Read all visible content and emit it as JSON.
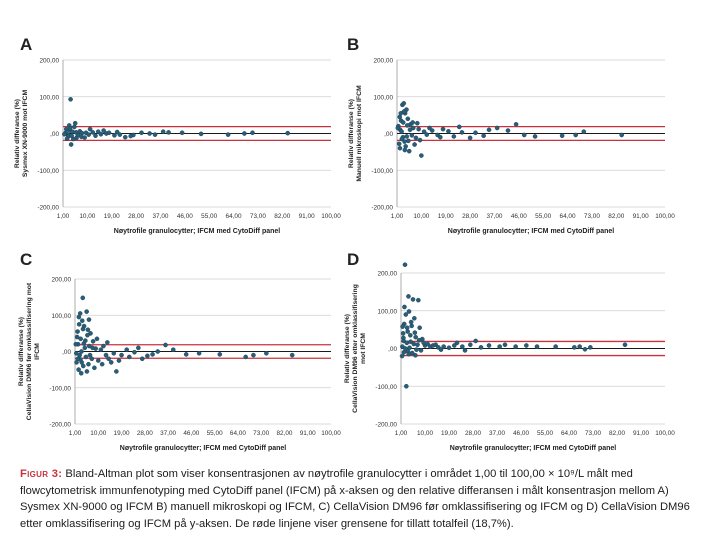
{
  "figure": {
    "caption_label": "Figur 3:",
    "caption_text": "Bland-Altman plot som viser konsentrasjonen av nøytrofile granulocytter i området 1,00 til 100,00 × 10⁹/L målt med flowcytometrisk immunfenotyping med CytoDiff panel (IFCM) på x-aksen og den relative differansen i målt konsentrasjon mellom A) Sysmex XN-9000 og IFCM B) manuell mikroskopi og IFCM, C) CellaVision DM96 før omklassifisering og IFCM og D) CellaVision DM96 etter omklassifisering og IFCM på y-aksen. De røde linjene viser grensene for tillatt totalfeil (18,7%)."
  },
  "colors": {
    "points": "#2a5d77",
    "limits": "#c8323c",
    "mean": "#1a1a1a",
    "grid": "#cfcfcf"
  },
  "chart_data": [
    {
      "panel": "A",
      "type": "scatter",
      "ylabel": [
        "Relativ differanse (%)",
        "Sysmex XN-9000 mot IFCM"
      ],
      "xlabel": "Nøytrofile granulocytter; IFCM  med CytoDiff panel",
      "xlim": [
        1,
        100
      ],
      "ylim": [
        -200,
        200
      ],
      "x_ticks": [
        "1,00",
        "10,00",
        "19,00",
        "28,00",
        "37,00",
        "46,00",
        "55,00",
        "64,00",
        "73,00",
        "82,00",
        "91,00",
        "100,00"
      ],
      "y_ticks": [
        "200,00",
        "100,00",
        ",00",
        "-100,00",
        "-200,00"
      ],
      "mean_line": 0,
      "limit_lines": [
        18.7,
        -18.7
      ],
      "points": [
        [
          3.8,
          93
        ],
        [
          2.2,
          12
        ],
        [
          3.5,
          8
        ],
        [
          4.5,
          5
        ],
        [
          2.8,
          -3
        ],
        [
          5.2,
          18
        ],
        [
          3.0,
          -8
        ],
        [
          4.0,
          -30
        ],
        [
          5.8,
          3
        ],
        [
          6.5,
          -4
        ],
        [
          7.2,
          6
        ],
        [
          2.0,
          2
        ],
        [
          1.5,
          -2
        ],
        [
          8.0,
          1
        ],
        [
          9.5,
          2
        ],
        [
          10.5,
          -3
        ],
        [
          12,
          3
        ],
        [
          14,
          5
        ],
        [
          15,
          -2
        ],
        [
          17,
          0
        ],
        [
          18,
          2
        ],
        [
          20,
          -5
        ],
        [
          22,
          -3
        ],
        [
          24,
          -10
        ],
        [
          27,
          -4
        ],
        [
          30,
          2
        ],
        [
          33,
          0
        ],
        [
          35,
          -3
        ],
        [
          38,
          5
        ],
        [
          40,
          3
        ],
        [
          45,
          2
        ],
        [
          52,
          -1
        ],
        [
          62,
          -3
        ],
        [
          68,
          0
        ],
        [
          71,
          2
        ],
        [
          84,
          1
        ],
        [
          6.0,
          -12
        ],
        [
          4.8,
          -15
        ],
        [
          3.3,
          22
        ],
        [
          2.5,
          -14
        ],
        [
          7.8,
          -9
        ],
        [
          11,
          12
        ],
        [
          5.5,
          28
        ],
        [
          9,
          -11
        ],
        [
          13,
          -6
        ],
        [
          16,
          8
        ],
        [
          21,
          4
        ],
        [
          26,
          -7
        ],
        [
          3.6,
          14
        ],
        [
          4.2,
          -6
        ]
      ]
    },
    {
      "panel": "B",
      "type": "scatter",
      "ylabel": [
        "Relativ differanse (%)",
        "Manuell mikroskopi mot IFCM"
      ],
      "xlabel": "Nøytrofile granulocytter; IFCM  med CytoDiff panel",
      "xlim": [
        1,
        100
      ],
      "ylim": [
        -200,
        200
      ],
      "x_ticks": [
        "1,00",
        "10,00",
        "19,00",
        "28,00",
        "37,00",
        "46,00",
        "55,00",
        "64,00",
        "73,00",
        "82,00",
        "91,00",
        "100,00"
      ],
      "y_ticks": [
        "200,00",
        "100,00",
        ",00",
        "-100,00",
        "-200,00"
      ],
      "mean_line": 0,
      "limit_lines": [
        18.7,
        -18.7
      ],
      "points": [
        [
          2.0,
          45
        ],
        [
          3.0,
          78
        ],
        [
          3.5,
          82
        ],
        [
          4.0,
          55
        ],
        [
          4.5,
          65
        ],
        [
          2.5,
          35
        ],
        [
          5.0,
          40
        ],
        [
          1.5,
          20
        ],
        [
          2.2,
          10
        ],
        [
          3.2,
          -10
        ],
        [
          3.8,
          -22
        ],
        [
          4.2,
          -35
        ],
        [
          5.5,
          -48
        ],
        [
          6.0,
          25
        ],
        [
          6.5,
          -5
        ],
        [
          7.0,
          15
        ],
        [
          8.0,
          -12
        ],
        [
          9.0,
          12
        ],
        [
          10.0,
          -60
        ],
        [
          11.0,
          5
        ],
        [
          12.0,
          -3
        ],
        [
          14.0,
          8
        ],
        [
          16.0,
          -4
        ],
        [
          18.0,
          12
        ],
        [
          20.0,
          6
        ],
        [
          22.0,
          -8
        ],
        [
          25.0,
          3
        ],
        [
          28.0,
          -12
        ],
        [
          30.0,
          2
        ],
        [
          33.0,
          -6
        ],
        [
          35.0,
          10
        ],
        [
          38.0,
          15
        ],
        [
          42.0,
          8
        ],
        [
          45.0,
          25
        ],
        [
          48.0,
          -4
        ],
        [
          52.0,
          -8
        ],
        [
          62.0,
          -6
        ],
        [
          67.0,
          -4
        ],
        [
          70.0,
          5
        ],
        [
          84.0,
          -4
        ],
        [
          2.8,
          -15
        ],
        [
          1.8,
          -28
        ],
        [
          3.6,
          60
        ],
        [
          4.8,
          22
        ],
        [
          5.2,
          -20
        ],
        [
          6.8,
          30
        ],
        [
          7.5,
          -30
        ],
        [
          8.5,
          28
        ],
        [
          2.4,
          55
        ],
        [
          3.3,
          30
        ],
        [
          4.6,
          -8
        ],
        [
          1.3,
          15
        ],
        [
          2.7,
          5
        ],
        [
          5.8,
          10
        ],
        [
          9.5,
          -18
        ],
        [
          13.0,
          15
        ],
        [
          17.0,
          -10
        ],
        [
          24.0,
          18
        ],
        [
          3.9,
          -45
        ],
        [
          2.1,
          -40
        ]
      ]
    },
    {
      "panel": "C",
      "type": "scatter",
      "ylabel": [
        "Relativ differanse (%)",
        "CellaVision DM96 før omklassifisering mot",
        "IFCM"
      ],
      "xlabel": "Nøytrofile granulocytter; IFCM  med CytoDiff panel",
      "xlim": [
        1,
        100
      ],
      "ylim": [
        -200,
        200
      ],
      "x_ticks": [
        "1,00",
        "10,00",
        "19,00",
        "28,00",
        "37,00",
        "46,00",
        "55,00",
        "64,00",
        "73,00",
        "82,00",
        "91,00",
        "100,00"
      ],
      "y_ticks": [
        "200,00",
        "100,00",
        ",00",
        "-100,00",
        "-200,00"
      ],
      "mean_line": 0,
      "limit_lines": [
        18.7,
        -18.7
      ],
      "points": [
        [
          4.0,
          148
        ],
        [
          3.0,
          105
        ],
        [
          5.5,
          110
        ],
        [
          2.5,
          95
        ],
        [
          3.8,
          85
        ],
        [
          4.5,
          70
        ],
        [
          6.0,
          60
        ],
        [
          2.0,
          55
        ],
        [
          7.0,
          50
        ],
        [
          1.8,
          40
        ],
        [
          3.2,
          35
        ],
        [
          5.0,
          30
        ],
        [
          8.0,
          28
        ],
        [
          2.2,
          20
        ],
        [
          6.5,
          15
        ],
        [
          4.8,
          10
        ],
        [
          9.0,
          8
        ],
        [
          3.5,
          0
        ],
        [
          1.5,
          -5
        ],
        [
          2.8,
          -10
        ],
        [
          5.2,
          -15
        ],
        [
          7.5,
          -20
        ],
        [
          3.6,
          -30
        ],
        [
          4.2,
          -40
        ],
        [
          2.4,
          -50
        ],
        [
          6.2,
          -35
        ],
        [
          10.0,
          -25
        ],
        [
          11.0,
          5
        ],
        [
          12.0,
          15
        ],
        [
          13.0,
          -10
        ],
        [
          14.0,
          -20
        ],
        [
          15.0,
          -30
        ],
        [
          16.0,
          -5
        ],
        [
          17.0,
          -55
        ],
        [
          19.0,
          -10
        ],
        [
          21.0,
          5
        ],
        [
          24.0,
          -2
        ],
        [
          27.0,
          -20
        ],
        [
          29.0,
          -12
        ],
        [
          31.0,
          -8
        ],
        [
          33.0,
          0
        ],
        [
          36.0,
          18
        ],
        [
          39.0,
          5
        ],
        [
          44.0,
          -8
        ],
        [
          49.0,
          -5
        ],
        [
          57.0,
          -8
        ],
        [
          67.0,
          -15
        ],
        [
          70.0,
          -10
        ],
        [
          75.0,
          -5
        ],
        [
          85.0,
          -10
        ],
        [
          1.3,
          20
        ],
        [
          2.6,
          75
        ],
        [
          3.4,
          -60
        ],
        [
          5.8,
          45
        ],
        [
          8.5,
          -45
        ],
        [
          9.5,
          35
        ],
        [
          6.8,
          -10
        ],
        [
          4.4,
          22
        ],
        [
          3.1,
          -22
        ],
        [
          7.8,
          10
        ],
        [
          11.5,
          -35
        ],
        [
          13.5,
          25
        ],
        [
          18.0,
          -25
        ],
        [
          22.0,
          -15
        ],
        [
          25.5,
          10
        ],
        [
          1.6,
          -30
        ],
        [
          2.1,
          -20
        ],
        [
          5.6,
          -55
        ],
        [
          4.1,
          62
        ],
        [
          6.4,
          88
        ]
      ]
    },
    {
      "panel": "D",
      "type": "scatter",
      "ylabel": [
        "Relativ differanse (%)",
        "CellaVision DM96 etter omklassifisering",
        "mot IFCM"
      ],
      "xlabel": "Nøytrofile granulocytter; IFCM  med CytoDiff panel",
      "xlim": [
        1,
        100
      ],
      "ylim": [
        -200,
        200
      ],
      "x_ticks": [
        "1,00",
        "10,00",
        "19,00",
        "28,00",
        "37,00",
        "46,00",
        "55,00",
        "64,00",
        "73,00",
        "82,00",
        "91,00",
        "100,00"
      ],
      "y_ticks": [
        "200,00",
        "100,00",
        ",00",
        "-100,00",
        "-200,00"
      ],
      "mean_line": 0,
      "limit_lines": [
        18.7,
        -18.7
      ],
      "points": [
        [
          2.5,
          222
        ],
        [
          5.5,
          130
        ],
        [
          3.8,
          138
        ],
        [
          7.5,
          128
        ],
        [
          4.0,
          98
        ],
        [
          2.8,
          90
        ],
        [
          6.0,
          80
        ],
        [
          2.2,
          65
        ],
        [
          5.0,
          60
        ],
        [
          8.0,
          55
        ],
        [
          3.5,
          45
        ],
        [
          1.8,
          40
        ],
        [
          4.5,
          35
        ],
        [
          6.5,
          30
        ],
        [
          9.0,
          25
        ],
        [
          2.0,
          20
        ],
        [
          3.2,
          15
        ],
        [
          5.8,
          12
        ],
        [
          7.2,
          10
        ],
        [
          10.0,
          8
        ],
        [
          1.5,
          5
        ],
        [
          4.2,
          2
        ],
        [
          2.6,
          0
        ],
        [
          6.8,
          -3
        ],
        [
          3.6,
          -8
        ],
        [
          8.5,
          -5
        ],
        [
          1.4,
          -20
        ],
        [
          3.0,
          -100
        ],
        [
          11.0,
          12
        ],
        [
          12.0,
          5
        ],
        [
          13.0,
          8
        ],
        [
          14.0,
          10
        ],
        [
          15.0,
          3
        ],
        [
          17.0,
          5
        ],
        [
          19.0,
          2
        ],
        [
          21.0,
          8
        ],
        [
          24.0,
          5
        ],
        [
          27.0,
          10
        ],
        [
          29.0,
          20
        ],
        [
          31.0,
          3
        ],
        [
          34.0,
          8
        ],
        [
          38.0,
          5
        ],
        [
          40.0,
          10
        ],
        [
          44.0,
          5
        ],
        [
          48.0,
          8
        ],
        [
          52.0,
          5
        ],
        [
          59.0,
          5
        ],
        [
          66.0,
          3
        ],
        [
          68.0,
          5
        ],
        [
          70.0,
          -2
        ],
        [
          72.0,
          3
        ],
        [
          85.0,
          10
        ],
        [
          4.8,
          70
        ],
        [
          3.3,
          55
        ],
        [
          2.3,
          110
        ],
        [
          6.2,
          42
        ],
        [
          1.9,
          28
        ],
        [
          5.2,
          -12
        ],
        [
          7.8,
          22
        ],
        [
          9.5,
          15
        ],
        [
          3.9,
          -15
        ],
        [
          2.1,
          -10
        ],
        [
          4.6,
          18
        ],
        [
          16.0,
          -3
        ],
        [
          22.0,
          15
        ],
        [
          25.0,
          -5
        ],
        [
          1.6,
          58
        ],
        [
          6.4,
          -18
        ]
      ]
    }
  ]
}
